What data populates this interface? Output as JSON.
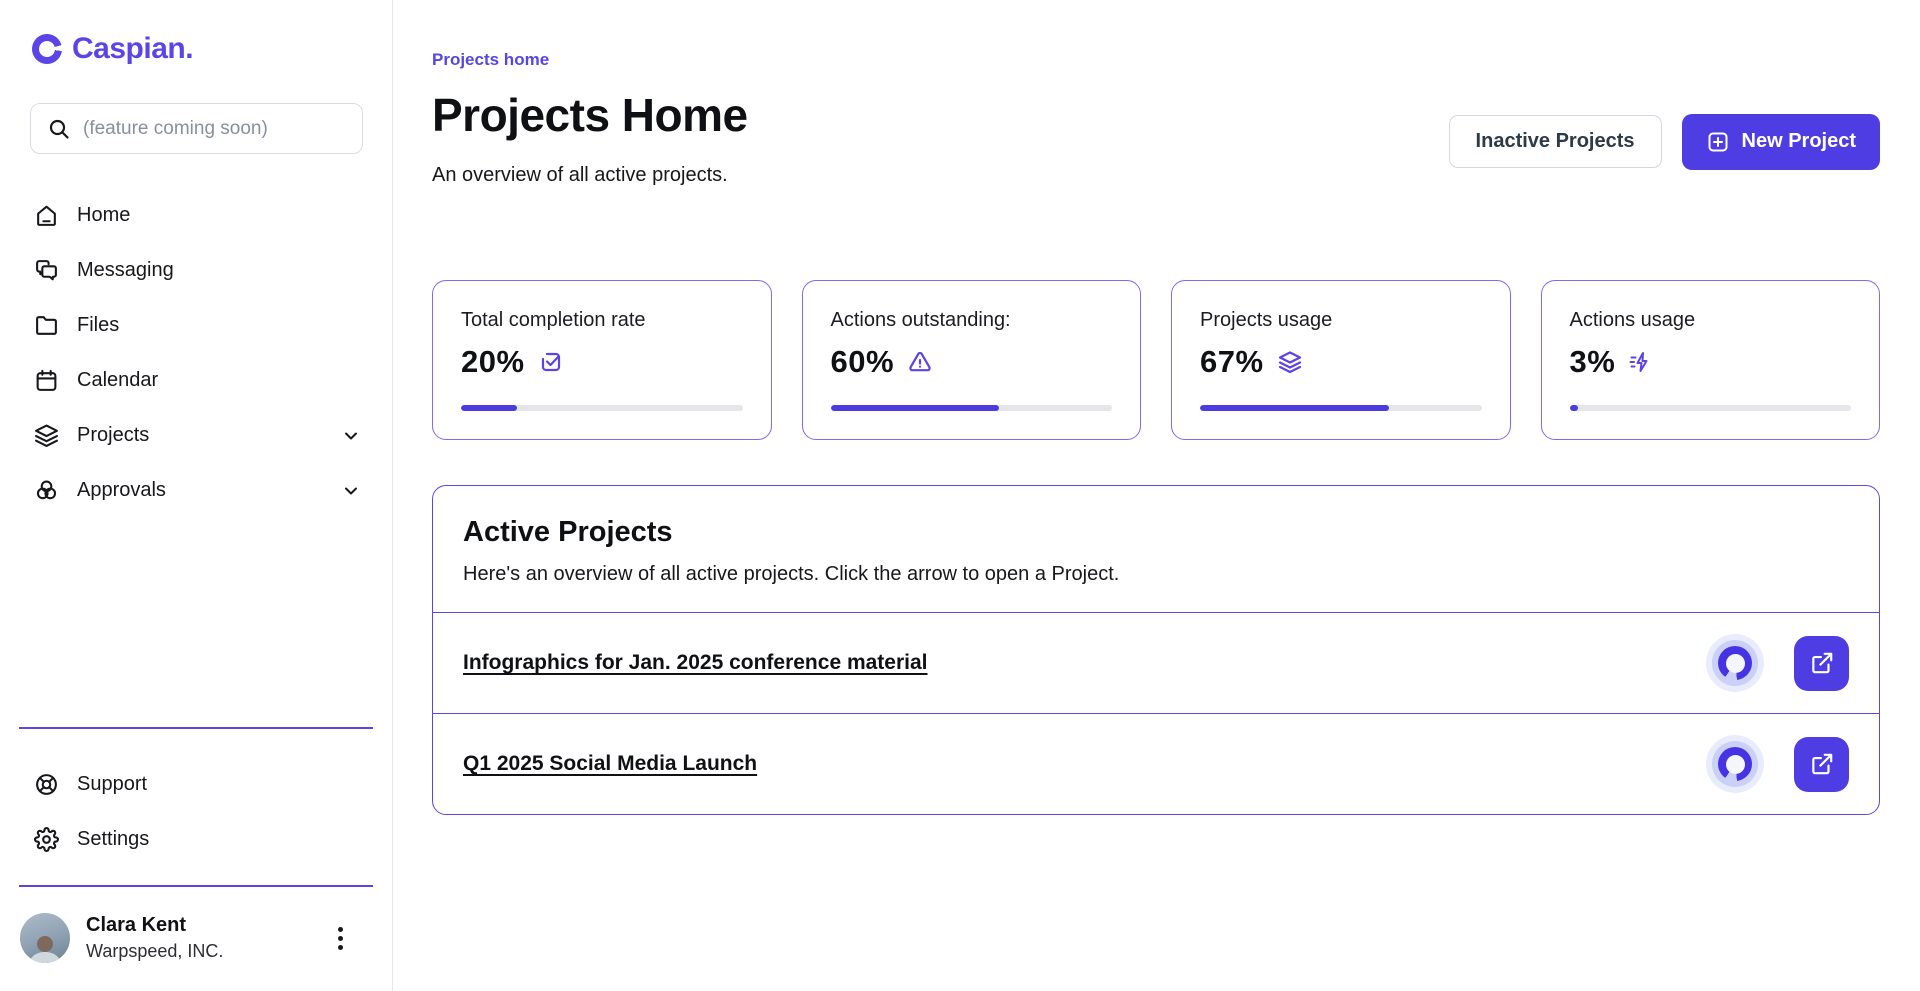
{
  "app": {
    "name": "Caspian."
  },
  "sidebar": {
    "search": {
      "placeholder": "(feature coming soon)"
    },
    "items": [
      {
        "label": "Home",
        "icon": "home-icon",
        "expandable": false
      },
      {
        "label": "Messaging",
        "icon": "messaging-icon",
        "expandable": false
      },
      {
        "label": "Files",
        "icon": "folder-icon",
        "expandable": false
      },
      {
        "label": "Calendar",
        "icon": "calendar-icon",
        "expandable": false
      },
      {
        "label": "Projects",
        "icon": "layers-icon",
        "expandable": true
      },
      {
        "label": "Approvals",
        "icon": "circles-icon",
        "expandable": true
      }
    ],
    "footer_items": [
      {
        "label": "Support",
        "icon": "life-buoy-icon"
      },
      {
        "label": "Settings",
        "icon": "gear-icon"
      }
    ],
    "user": {
      "name": "Clara Kent",
      "company": "Warpspeed, INC."
    }
  },
  "header": {
    "breadcrumb": "Projects home",
    "title": "Projects Home",
    "subtitle": "An overview of all active projects.",
    "inactive_button": "Inactive Projects",
    "new_button": "New Project"
  },
  "stats": [
    {
      "label": "Total completion rate",
      "value": "20%",
      "percent": 20,
      "icon": "checkbox-check-icon"
    },
    {
      "label": "Actions outstanding:",
      "value": "60%",
      "percent": 60,
      "icon": "alert-triangle-icon"
    },
    {
      "label": "Projects usage",
      "value": "67%",
      "percent": 67,
      "icon": "layers-icon"
    },
    {
      "label": "Actions usage",
      "value": "3%",
      "percent": 3,
      "icon": "zap-fast-icon"
    }
  ],
  "active_projects": {
    "title": "Active Projects",
    "description": "Here's an overview of all active projects. Click the arrow to open a Project.",
    "rows": [
      {
        "title": "Infographics for Jan. 2025 conference material"
      },
      {
        "title": "Q1 2025 Social Media Launch"
      }
    ]
  },
  "colors": {
    "primary_purple": "#4f3de4",
    "accent_purple": "#5b43e8",
    "card_border": "#7b6cf0",
    "progress_track": "#e6e6ea",
    "badge_outer": "#e9ecfd",
    "badge_mid": "#cad0f7"
  }
}
